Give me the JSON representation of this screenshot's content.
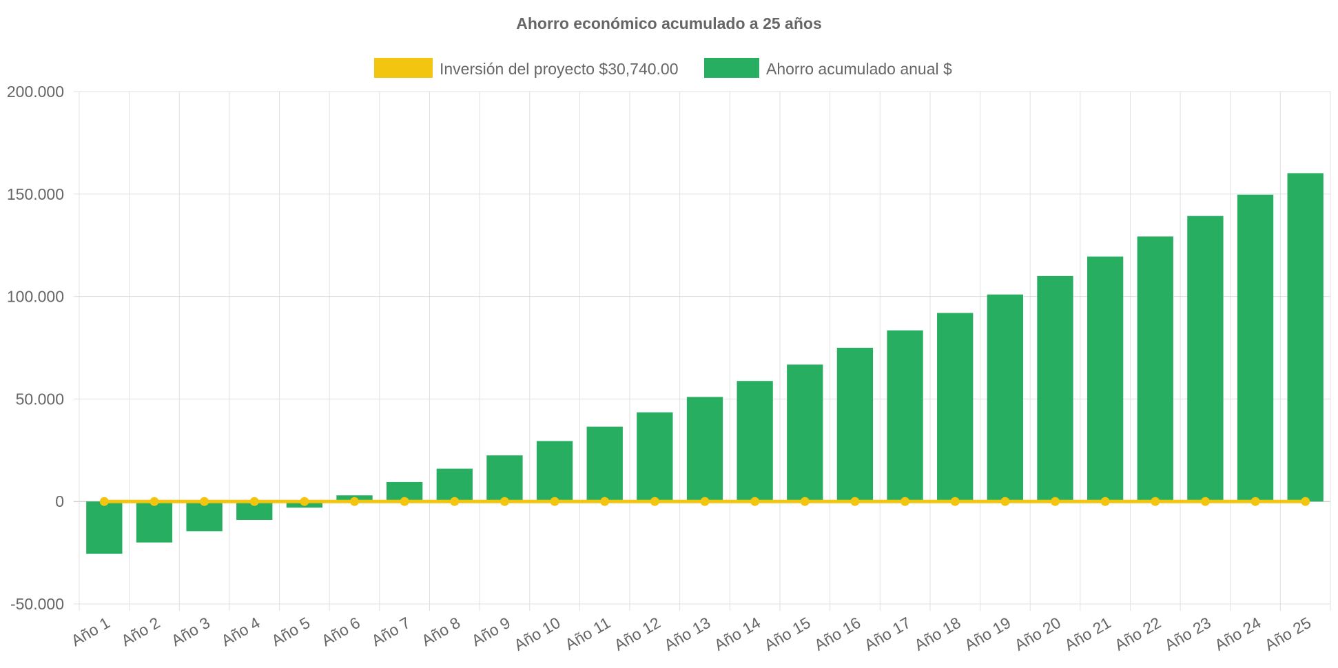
{
  "chart_data": {
    "type": "bar",
    "title": "Ahorro económico acumulado a 25 años",
    "categories": [
      "Año 1",
      "Año 2",
      "Año 3",
      "Año 4",
      "Año 5",
      "Año 6",
      "Año 7",
      "Año 8",
      "Año 9",
      "Año 10",
      "Año 11",
      "Año 12",
      "Año 13",
      "Año 14",
      "Año 15",
      "Año 16",
      "Año 17",
      "Año 18",
      "Año 19",
      "Año 20",
      "Año 21",
      "Año 22",
      "Año 23",
      "Año 24",
      "Año 25"
    ],
    "series": [
      {
        "name": "Inversión del proyecto $30,740.00",
        "kind": "line",
        "color": "#f2c511",
        "values": [
          0,
          0,
          0,
          0,
          0,
          0,
          0,
          0,
          0,
          0,
          0,
          0,
          0,
          0,
          0,
          0,
          0,
          0,
          0,
          0,
          0,
          0,
          0,
          0,
          0
        ]
      },
      {
        "name": "Ahorro acumulado anual $",
        "kind": "bar",
        "color": "#27ae60",
        "values": [
          -25500,
          -20000,
          -14500,
          -9000,
          -3000,
          3000,
          9500,
          16000,
          22500,
          29500,
          36500,
          43500,
          51000,
          58800,
          66800,
          75000,
          83500,
          92000,
          101000,
          110000,
          119500,
          129300,
          139300,
          149700,
          160200
        ]
      }
    ],
    "ylim": [
      -50000,
      200000
    ],
    "yticks": [
      "200.000",
      "150.000",
      "100.000",
      "50.000",
      "0",
      "-50.000"
    ],
    "ytick_values": [
      200000,
      150000,
      100000,
      50000,
      0,
      -50000
    ],
    "grid": true,
    "legend_position": "top-center"
  }
}
